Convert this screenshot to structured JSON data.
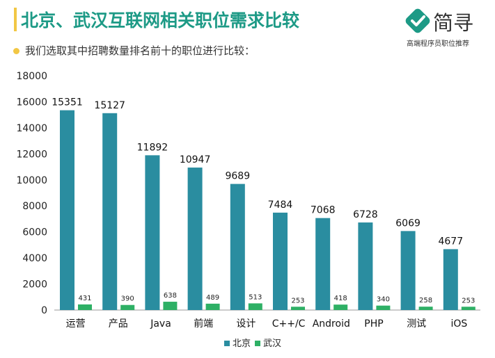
{
  "header": {
    "title": "北京、武汉互联网相关职位需求比较",
    "subtitle": "我们选取其中招聘数量排名前十的职位进行比较："
  },
  "logo": {
    "name": "简寻",
    "tagline": "高端程序员职位推荐",
    "icon": "check-icon",
    "color": "#1d9a86"
  },
  "colors": {
    "accent": "#1d9a86",
    "bullet": "#f2c744",
    "beijing": "#2a8da0",
    "wuhan": "#2eb065"
  },
  "chart_data": {
    "type": "bar",
    "title": "北京、武汉互联网相关职位需求比较",
    "categories": [
      "运营",
      "产品",
      "Java",
      "前端",
      "设计",
      "C++/C",
      "Android",
      "PHP",
      "测试",
      "iOS"
    ],
    "series": [
      {
        "name": "北京",
        "values": [
          15351,
          15127,
          11892,
          10947,
          9689,
          7484,
          7068,
          6728,
          6069,
          4677
        ]
      },
      {
        "name": "武汉",
        "values": [
          431,
          390,
          638,
          489,
          513,
          253,
          418,
          340,
          258,
          253
        ]
      }
    ],
    "ylim": [
      0,
      18000
    ],
    "yticks": [
      0,
      2000,
      4000,
      6000,
      8000,
      10000,
      12000,
      14000,
      16000,
      18000
    ],
    "xlabel": "",
    "ylabel": "",
    "grid": false,
    "legend": "bottom-center"
  }
}
